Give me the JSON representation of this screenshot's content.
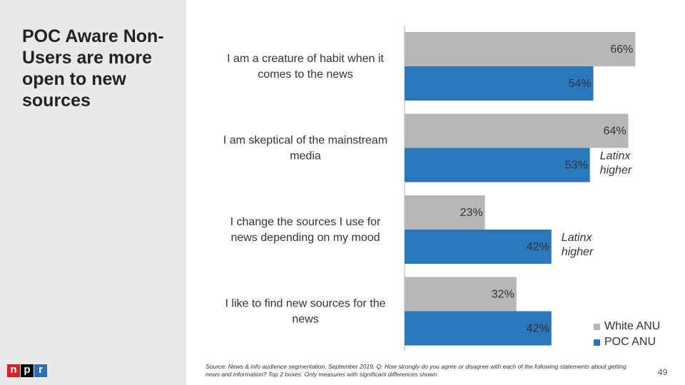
{
  "sidebar": {
    "title": "POC Aware Non-Users are more open to new sources"
  },
  "logo": {
    "letters": [
      "n",
      "p",
      "r"
    ],
    "colors": [
      "#d62021",
      "#000000",
      "#2d6fb4"
    ]
  },
  "chart_data": {
    "type": "bar",
    "orientation": "horizontal",
    "xlim": [
      0,
      100
    ],
    "categories": [
      [
        "I am a creature of habit when it",
        "comes to the news"
      ],
      [
        "I am skeptical of the mainstream",
        "media"
      ],
      [
        "I change the sources I use for",
        "news depending on my mood"
      ],
      [
        "I like to find new sources for the",
        "news"
      ]
    ],
    "series": [
      {
        "name": "White ANU",
        "color": "#b7b7b7",
        "values": [
          66,
          64,
          23,
          32
        ],
        "labels": [
          "66%",
          "64%",
          "23%",
          "32%"
        ]
      },
      {
        "name": "POC ANU",
        "color": "#2b77be",
        "values": [
          54,
          53,
          42,
          42
        ],
        "labels": [
          "54%",
          "53%",
          "42%",
          "42%"
        ]
      }
    ],
    "annotations": [
      {
        "category_index": 1,
        "text": [
          "Latinx",
          "higher"
        ]
      },
      {
        "category_index": 2,
        "text": [
          "Latinx",
          "higher"
        ]
      }
    ]
  },
  "source_note": "Source: News & info audience segmentation, September 2019. Q: How strongly do you agree or disagree with each of the following statements about getting news and information? Top 2 boxes. Only measures with significant differences shown.",
  "page_number": "49"
}
